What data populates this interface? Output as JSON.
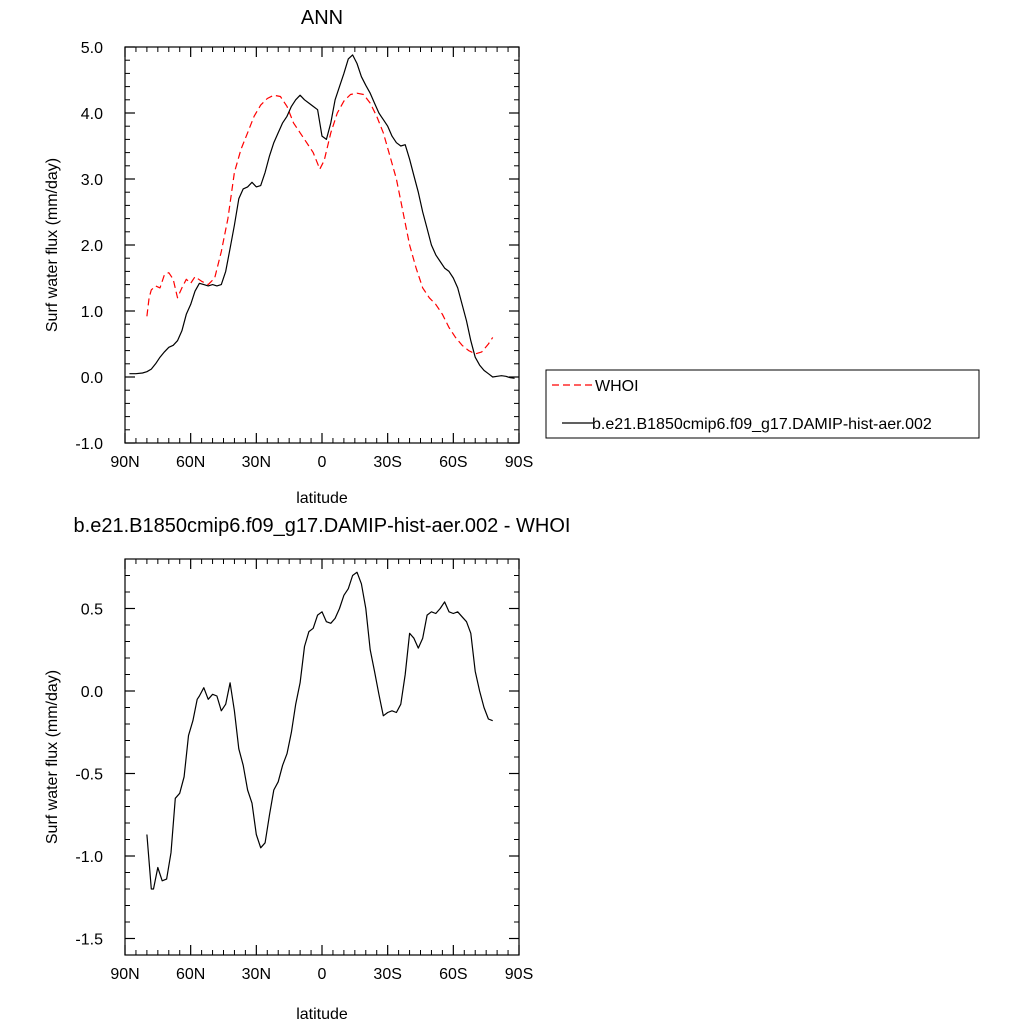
{
  "colors": {
    "whoi": "#ff0000",
    "model": "#000000",
    "axis": "#000000",
    "background": "#ffffff"
  },
  "chart_data": [
    {
      "type": "line",
      "title": "ANN",
      "xlabel": "latitude",
      "ylabel": "Surf water flux (mm/day)",
      "xlim": [
        90,
        -90
      ],
      "ylim": [
        -1.0,
        5.0
      ],
      "xticks": [
        90,
        60,
        30,
        0,
        -30,
        -60,
        -90
      ],
      "xtick_labels": [
        "90N",
        "60N",
        "30N",
        "0",
        "30S",
        "60S",
        "90S"
      ],
      "yticks": [
        -1.0,
        0.0,
        1.0,
        2.0,
        3.0,
        4.0,
        5.0
      ],
      "ytick_labels": [
        "-1.0",
        "0.0",
        "1.0",
        "2.0",
        "3.0",
        "4.0",
        "5.0"
      ],
      "legend": {
        "position": "right",
        "entries": [
          {
            "name": "WHOI",
            "style": "dashed"
          },
          {
            "name": "b.e21.B1850cmip6.f09_g17.DAMIP-hist-aer.002",
            "style": "solid"
          }
        ]
      },
      "series": [
        {
          "name": "WHOI",
          "style": "dashed",
          "x": [
            80,
            79,
            78,
            76,
            74,
            72,
            70,
            68,
            66,
            64,
            62,
            60,
            58,
            55,
            52,
            49,
            46,
            43,
            40,
            37,
            34,
            31,
            28,
            25,
            22,
            19,
            16,
            13,
            10,
            7,
            4,
            1,
            -1,
            -4,
            -7,
            -10,
            -13,
            -16,
            -19,
            -22,
            -25,
            -28,
            -31,
            -34,
            -37,
            -40,
            -43,
            -46,
            -49,
            -52,
            -55,
            -58,
            -61,
            -64,
            -67,
            -70,
            -73,
            -76,
            -78
          ],
          "y": [
            0.92,
            1.2,
            1.32,
            1.38,
            1.35,
            1.55,
            1.58,
            1.48,
            1.2,
            1.35,
            1.48,
            1.42,
            1.52,
            1.45,
            1.4,
            1.5,
            1.9,
            2.4,
            3.1,
            3.45,
            3.7,
            3.95,
            4.12,
            4.22,
            4.27,
            4.25,
            4.1,
            3.85,
            3.7,
            3.55,
            3.4,
            3.15,
            3.28,
            3.7,
            4.0,
            4.18,
            4.28,
            4.3,
            4.28,
            4.15,
            3.95,
            3.7,
            3.35,
            3.0,
            2.5,
            2.0,
            1.65,
            1.35,
            1.2,
            1.1,
            0.95,
            0.75,
            0.6,
            0.48,
            0.4,
            0.35,
            0.38,
            0.5,
            0.6
          ]
        },
        {
          "name": "b.e21.B1850cmip6.f09_g17.DAMIP-hist-aer.002",
          "style": "solid",
          "x": [
            88,
            85,
            82,
            80,
            78,
            76,
            74,
            72,
            70,
            68,
            66,
            64,
            62,
            60,
            58,
            56,
            54,
            52,
            50,
            48,
            46,
            44,
            42,
            40,
            38,
            36,
            34,
            32,
            30,
            28,
            26,
            24,
            22,
            20,
            18,
            16,
            14,
            12,
            10,
            8,
            6,
            4,
            2,
            0,
            -2,
            -4,
            -6,
            -8,
            -10,
            -12,
            -14,
            -16,
            -18,
            -20,
            -22,
            -24,
            -26,
            -28,
            -30,
            -32,
            -34,
            -36,
            -38,
            -40,
            -42,
            -44,
            -46,
            -48,
            -50,
            -52,
            -54,
            -56,
            -58,
            -60,
            -62,
            -64,
            -66,
            -68,
            -70,
            -72,
            -74,
            -76,
            -78,
            -80,
            -82,
            -84,
            -86,
            -88
          ],
          "y": [
            0.05,
            0.05,
            0.06,
            0.08,
            0.12,
            0.2,
            0.3,
            0.38,
            0.45,
            0.48,
            0.55,
            0.7,
            0.95,
            1.1,
            1.3,
            1.42,
            1.4,
            1.38,
            1.4,
            1.38,
            1.4,
            1.6,
            1.95,
            2.3,
            2.7,
            2.85,
            2.88,
            2.95,
            2.88,
            2.9,
            3.1,
            3.35,
            3.55,
            3.7,
            3.85,
            3.95,
            4.1,
            4.2,
            4.27,
            4.2,
            4.15,
            4.1,
            4.05,
            3.65,
            3.6,
            3.85,
            4.2,
            4.4,
            4.6,
            4.82,
            4.88,
            4.75,
            4.55,
            4.42,
            4.3,
            4.15,
            4.0,
            3.9,
            3.8,
            3.65,
            3.55,
            3.5,
            3.52,
            3.3,
            3.05,
            2.8,
            2.5,
            2.25,
            2.0,
            1.85,
            1.75,
            1.65,
            1.6,
            1.5,
            1.35,
            1.1,
            0.85,
            0.55,
            0.3,
            0.18,
            0.1,
            0.05,
            0.0,
            0.01,
            0.02,
            0.01,
            -0.01,
            -0.02
          ]
        }
      ]
    },
    {
      "type": "line",
      "title": "b.e21.B1850cmip6.f09_g17.DAMIP-hist-aer.002 - WHOI",
      "xlabel": "latitude",
      "ylabel": "Surf water flux (mm/day)",
      "xlim": [
        90,
        -90
      ],
      "ylim": [
        -1.6,
        0.8
      ],
      "xticks": [
        90,
        60,
        30,
        0,
        -30,
        -60,
        -90
      ],
      "xtick_labels": [
        "90N",
        "60N",
        "30N",
        "0",
        "30S",
        "60S",
        "90S"
      ],
      "yticks": [
        -1.5,
        -1.0,
        -0.5,
        0.0,
        0.5
      ],
      "ytick_labels": [
        "-1.5",
        "-1.0",
        "-0.5",
        "0.0",
        "0.5"
      ],
      "series": [
        {
          "name": "b.e21.B1850cmip6.f09_g17.DAMIP-hist-aer.002 - WHOI",
          "style": "solid",
          "x": [
            80,
            78,
            77,
            75,
            73,
            71,
            69,
            67,
            65,
            63,
            61,
            59,
            57,
            56,
            54,
            52,
            50,
            48,
            46,
            44,
            42,
            40,
            38,
            36,
            34,
            32,
            30,
            28,
            26,
            24,
            22,
            20,
            18,
            16,
            14,
            12,
            10,
            8,
            6,
            4,
            2,
            0,
            -2,
            -4,
            -6,
            -8,
            -10,
            -12,
            -14,
            -16,
            -18,
            -20,
            -22,
            -24,
            -26,
            -28,
            -30,
            -32,
            -34,
            -36,
            -38,
            -40,
            -42,
            -44,
            -46,
            -48,
            -50,
            -52,
            -54,
            -56,
            -58,
            -60,
            -62,
            -64,
            -66,
            -68,
            -70,
            -72,
            -74,
            -76,
            -78
          ],
          "y": [
            -0.87,
            -1.2,
            -1.2,
            -1.07,
            -1.15,
            -1.14,
            -0.98,
            -0.65,
            -0.62,
            -0.52,
            -0.27,
            -0.18,
            -0.05,
            -0.03,
            0.02,
            -0.05,
            -0.02,
            -0.03,
            -0.12,
            -0.08,
            0.05,
            -0.12,
            -0.35,
            -0.45,
            -0.6,
            -0.68,
            -0.87,
            -0.95,
            -0.92,
            -0.75,
            -0.6,
            -0.55,
            -0.45,
            -0.38,
            -0.25,
            -0.08,
            0.05,
            0.27,
            0.36,
            0.38,
            0.46,
            0.48,
            0.42,
            0.41,
            0.44,
            0.5,
            0.58,
            0.62,
            0.7,
            0.72,
            0.65,
            0.5,
            0.25,
            0.12,
            -0.02,
            -0.15,
            -0.13,
            -0.12,
            -0.13,
            -0.08,
            0.1,
            0.35,
            0.32,
            0.26,
            0.32,
            0.46,
            0.48,
            0.47,
            0.5,
            0.54,
            0.48,
            0.47,
            0.48,
            0.45,
            0.42,
            0.35,
            0.12,
            0.0,
            -0.1,
            -0.17,
            -0.18
          ]
        }
      ]
    }
  ]
}
